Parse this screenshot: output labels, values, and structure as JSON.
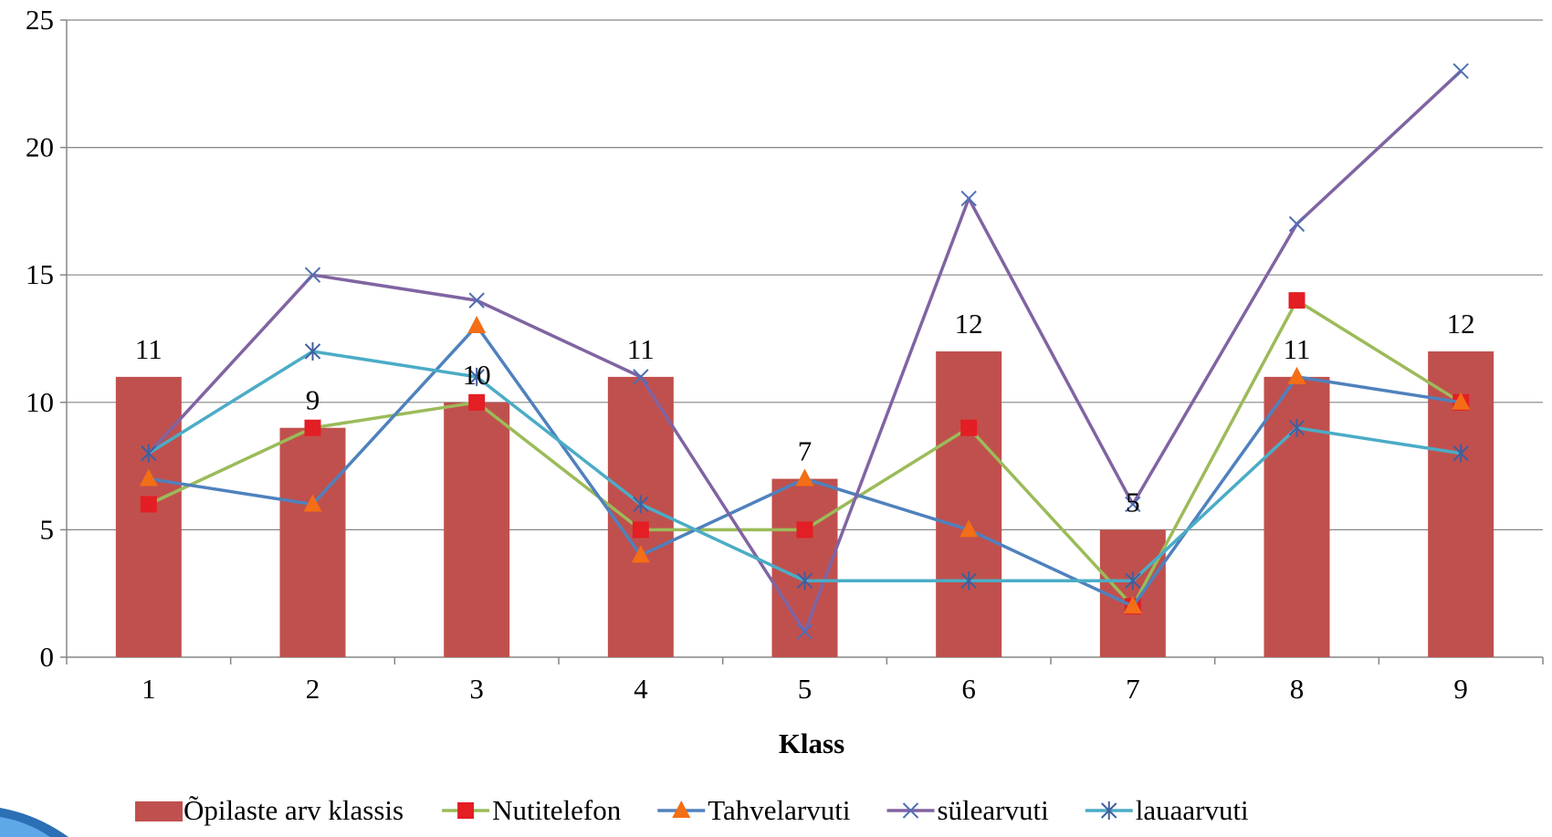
{
  "chart_data": {
    "type": "bar",
    "categories": [
      "1",
      "2",
      "3",
      "4",
      "5",
      "6",
      "7",
      "8",
      "9"
    ],
    "xlabel": "Klass",
    "ylabel": "",
    "ylim": [
      0,
      25
    ],
    "yticks": [
      0,
      5,
      10,
      15,
      20,
      25
    ],
    "grid": true,
    "legend_position": "bottom",
    "bar_series": {
      "name": "Õpilaste arv klassis",
      "values": [
        11,
        9,
        10,
        11,
        7,
        12,
        5,
        11,
        12
      ],
      "color": "#C0504D",
      "data_labels": true
    },
    "line_series": [
      {
        "name": "Nutitelefon",
        "values": [
          6,
          9,
          10,
          5,
          5,
          9,
          2,
          14,
          10
        ],
        "color": "#9BBB59",
        "marker": "square",
        "marker_color": "#E31E24"
      },
      {
        "name": "Tahvelarvuti",
        "values": [
          7,
          6,
          13,
          4,
          7,
          5,
          2,
          11,
          10
        ],
        "color": "#4F81BD",
        "marker": "triangle",
        "marker_color": "#F36E16"
      },
      {
        "name": "sülearvuti",
        "values": [
          8,
          15,
          14,
          11,
          1,
          18,
          6,
          17,
          23
        ],
        "color": "#8064A2",
        "marker": "x",
        "marker_color": "#4F6FB5"
      },
      {
        "name": "lauaarvuti",
        "values": [
          8,
          12,
          11,
          6,
          3,
          3,
          3,
          9,
          8
        ],
        "color": "#4BACC6",
        "marker": "star",
        "marker_color": "#3F5F9F"
      }
    ]
  }
}
